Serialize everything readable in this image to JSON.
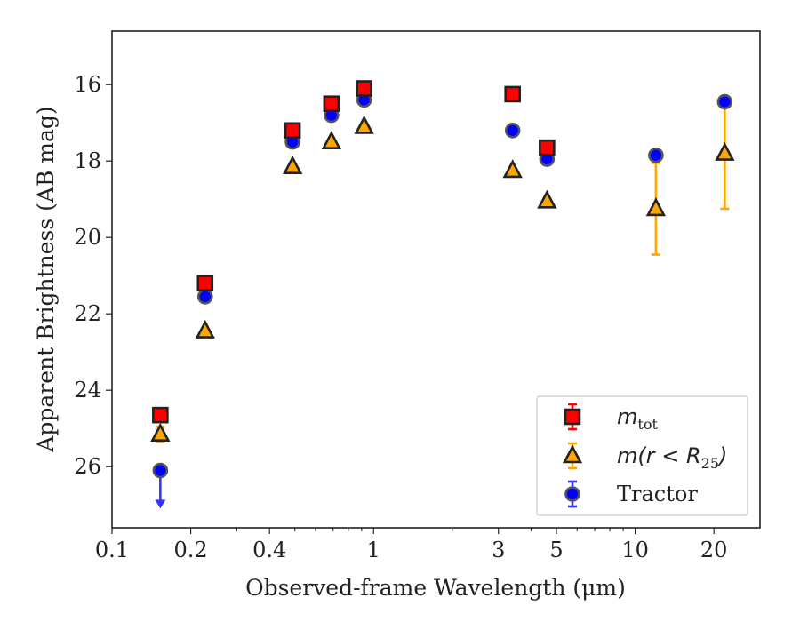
{
  "chart_data": {
    "type": "scatter",
    "xlabel": "Observed-frame Wavelength (μm)",
    "ylabel": "Apparent Brightness (AB mag)",
    "xscale": "log",
    "xlim": [
      0.1,
      30
    ],
    "ylim": [
      27.6,
      14.6
    ],
    "y_inverted": true,
    "grid": false,
    "legend_position": "lower-right",
    "x_ticks": [
      {
        "value": 0.1,
        "label": "0.1"
      },
      {
        "value": 0.2,
        "label": "0.2"
      },
      {
        "value": 0.4,
        "label": "0.4"
      },
      {
        "value": 1,
        "label": "1"
      },
      {
        "value": 3,
        "label": "3"
      },
      {
        "value": 5,
        "label": "5"
      },
      {
        "value": 10,
        "label": "10"
      },
      {
        "value": 20,
        "label": "20"
      }
    ],
    "y_ticks": [
      {
        "value": 16,
        "label": "16"
      },
      {
        "value": 18,
        "label": "18"
      },
      {
        "value": 20,
        "label": "20"
      },
      {
        "value": 22,
        "label": "22"
      },
      {
        "value": 24,
        "label": "24"
      },
      {
        "value": 26,
        "label": "26"
      }
    ],
    "series": [
      {
        "name": "m_tot",
        "legend_main": "m",
        "legend_sub": "tot",
        "marker": "square",
        "color": "#ff0000",
        "edge_color": "#222222",
        "errorbar_color": "#ff0000",
        "points": [
          {
            "x": 0.153,
            "y": 24.65,
            "yerr": 0.15
          },
          {
            "x": 0.227,
            "y": 21.2,
            "yerr": 0.05
          },
          {
            "x": 0.49,
            "y": 17.2,
            "yerr": 0.05
          },
          {
            "x": 0.69,
            "y": 16.5,
            "yerr": 0.05
          },
          {
            "x": 0.92,
            "y": 16.1,
            "yerr": 0.05
          },
          {
            "x": 3.4,
            "y": 16.25,
            "yerr": 0.05
          },
          {
            "x": 4.6,
            "y": 17.65,
            "yerr": 0.05
          }
        ]
      },
      {
        "name": "m(r < R_25)",
        "legend_main": "m(r < R",
        "legend_sub": "25",
        "legend_tail": ")",
        "marker": "triangle",
        "color": "#ffa500",
        "edge_color": "#222222",
        "errorbar_color": "#ffa500",
        "points": [
          {
            "x": 0.153,
            "y": 25.15,
            "yerr": 0.2
          },
          {
            "x": 0.227,
            "y": 22.45,
            "yerr": 0.05
          },
          {
            "x": 0.49,
            "y": 18.15,
            "yerr": 0.05
          },
          {
            "x": 0.69,
            "y": 17.5,
            "yerr": 0.05
          },
          {
            "x": 0.92,
            "y": 17.1,
            "yerr": 0.05
          },
          {
            "x": 3.4,
            "y": 18.25,
            "yerr": 0.05
          },
          {
            "x": 4.6,
            "y": 19.05,
            "yerr": 0.05
          },
          {
            "x": 12.0,
            "y": 19.25,
            "yerr": 1.2
          },
          {
            "x": 22.0,
            "y": 17.8,
            "yerr": 1.45
          }
        ]
      },
      {
        "name": "Tractor",
        "legend_main": "Tractor",
        "marker": "circle",
        "color": "#0000ff",
        "edge_color": "#555555",
        "errorbar_color": "#3333ff",
        "points": [
          {
            "x": 0.153,
            "y": 26.1,
            "upper_limit": true
          },
          {
            "x": 0.227,
            "y": 21.55,
            "yerr": 0.05
          },
          {
            "x": 0.49,
            "y": 17.5,
            "yerr": 0.05
          },
          {
            "x": 0.69,
            "y": 16.8,
            "yerr": 0.05
          },
          {
            "x": 0.92,
            "y": 16.4,
            "yerr": 0.05
          },
          {
            "x": 3.4,
            "y": 17.2,
            "yerr": 0.05
          },
          {
            "x": 4.6,
            "y": 17.95,
            "yerr": 0.05
          },
          {
            "x": 12.0,
            "y": 17.85,
            "yerr": 0.05
          },
          {
            "x": 22.0,
            "y": 16.45,
            "yerr": 0.05
          }
        ]
      }
    ]
  }
}
